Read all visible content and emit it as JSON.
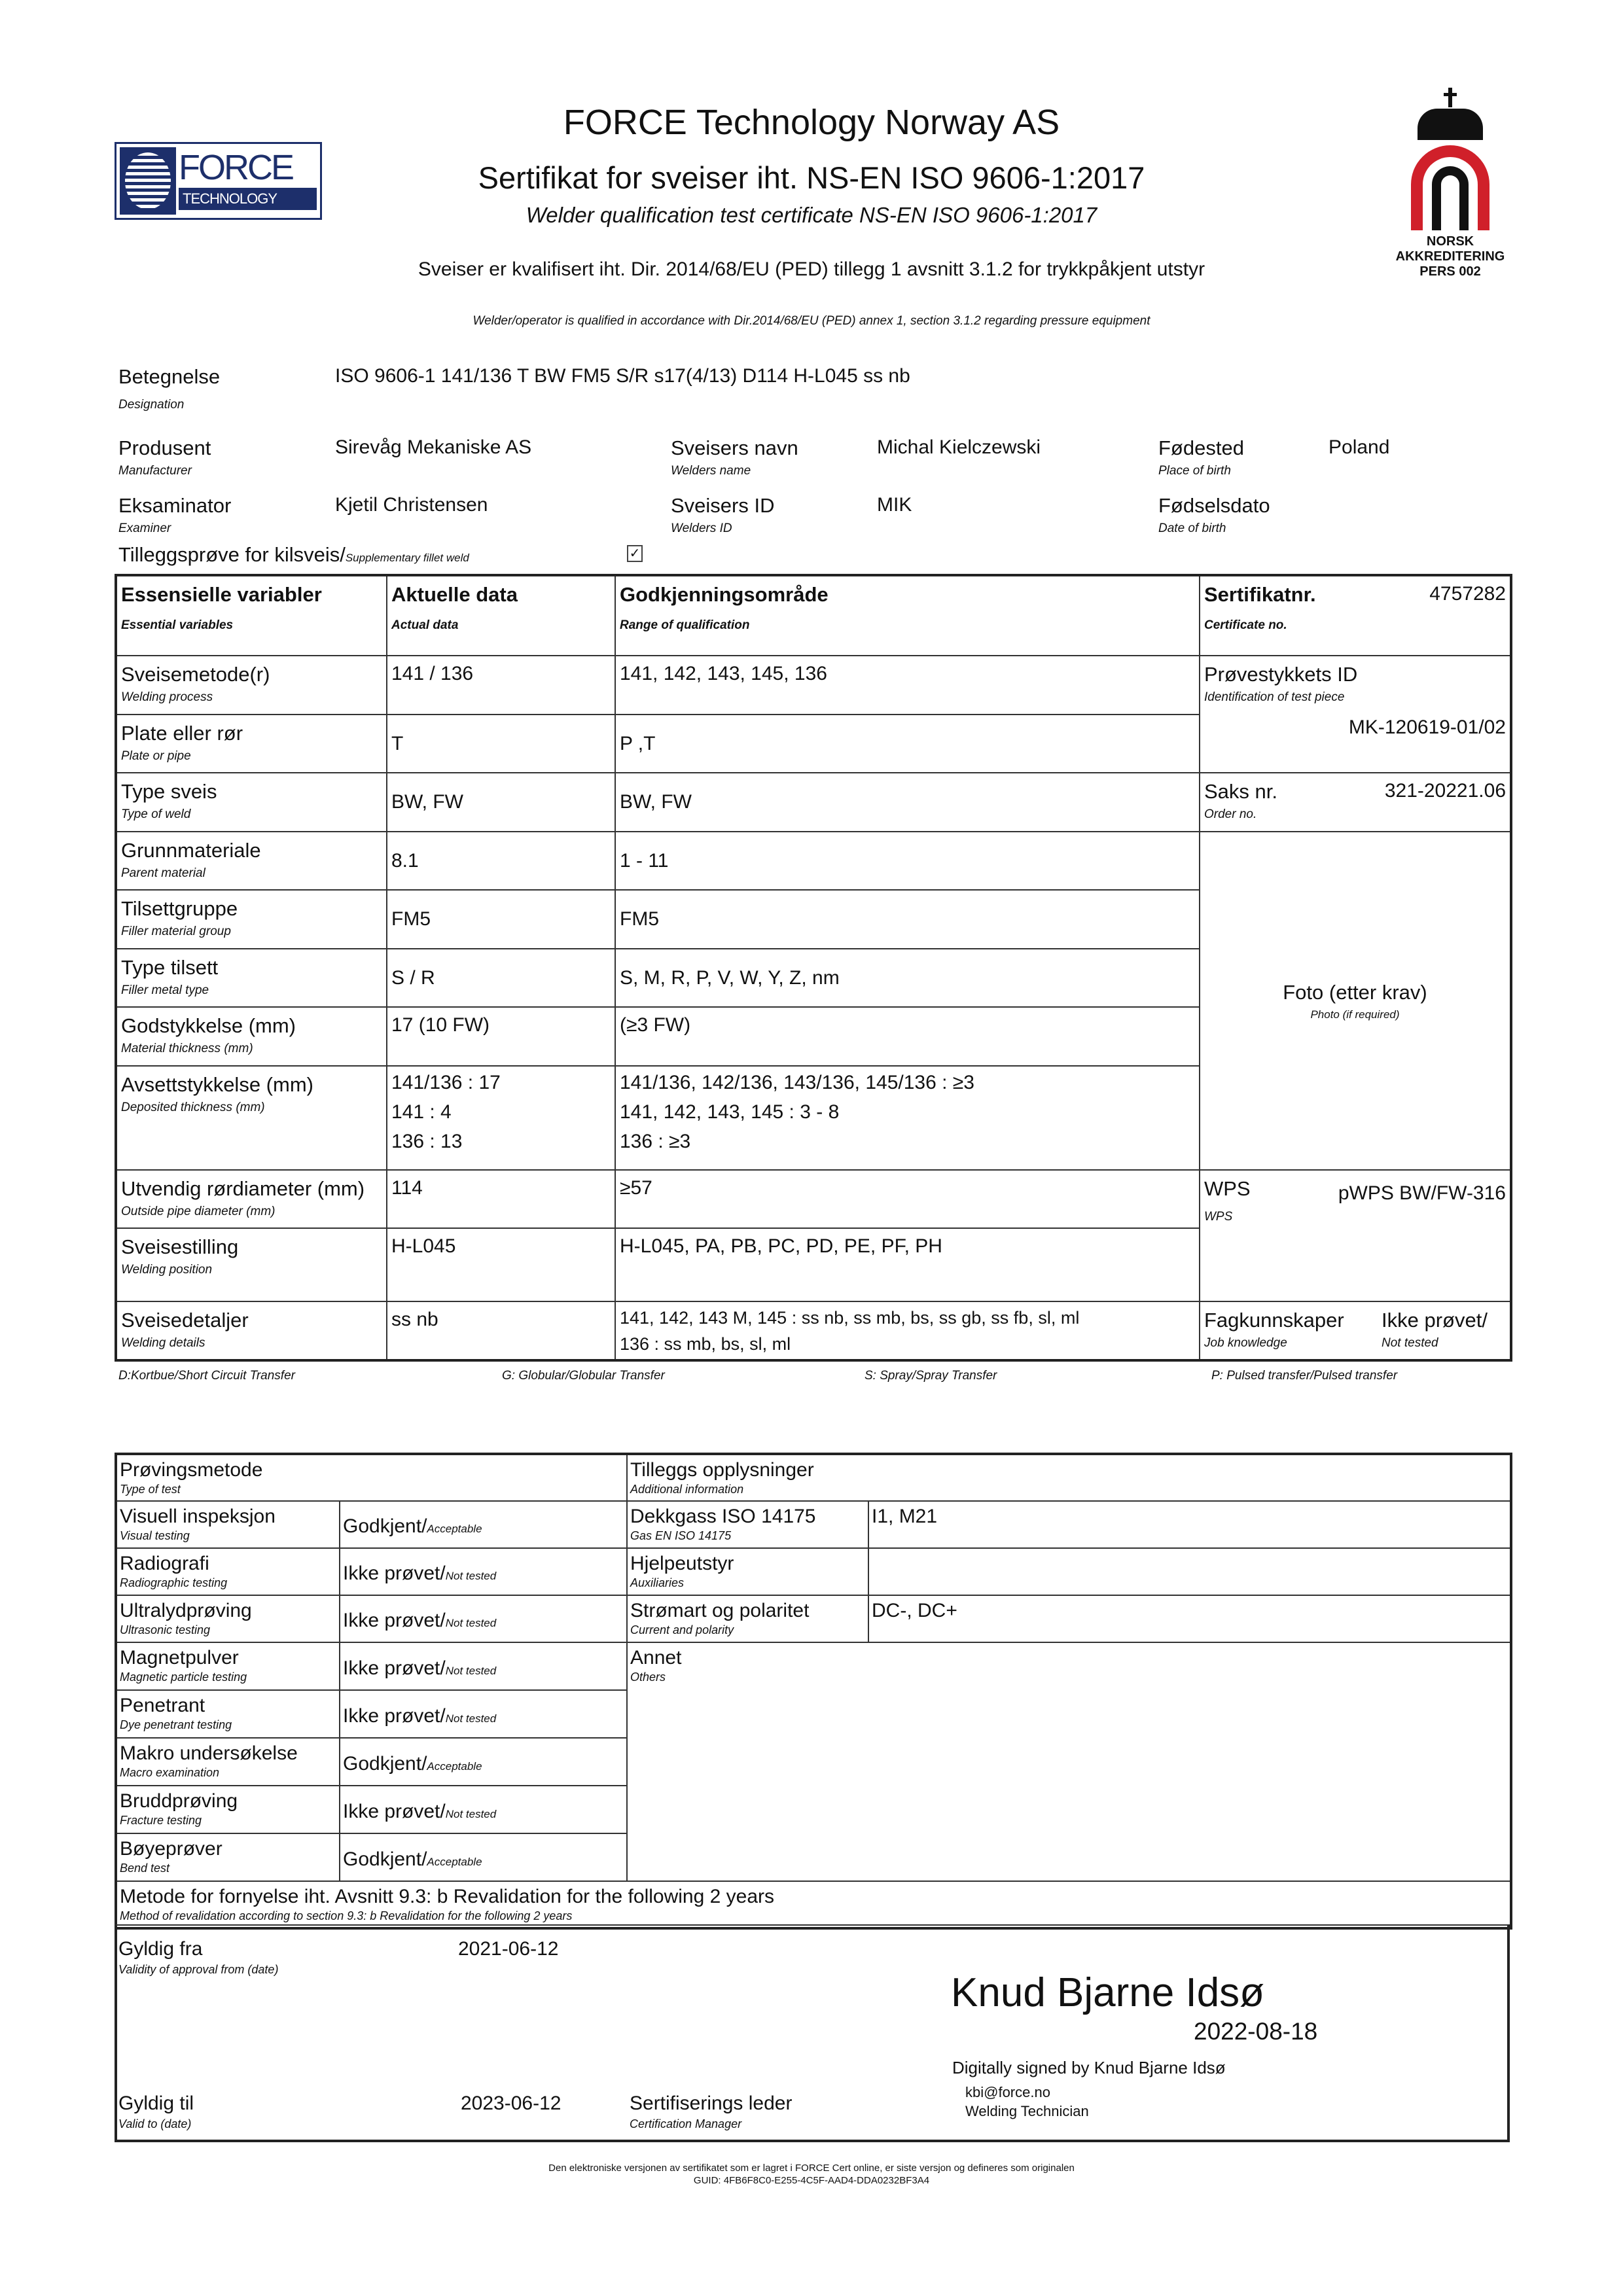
{
  "header": {
    "company": "FORCE Technology Norway AS",
    "title": "Sertifikat for sveiser iht. NS-EN ISO 9606-1:2017",
    "title_en": "Welder qualification test certificate NS-EN ISO 9606-1:2017",
    "ped_no": "Sveiser er kvalifisert iht. Dir. 2014/68/EU (PED) tillegg 1 avsnitt 3.1.2 for trykkpåkjent utstyr",
    "ped_en": "Welder/operator is qualified in accordance with Dir.2014/68/EU (PED) annex 1, section 3.1.2 regarding pressure equipment",
    "logo_force": {
      "line1": "FORCE",
      "line2": "TECHNOLOGY",
      "color": "#1d2f6b"
    },
    "logo_accreditation": {
      "line1": "NORSK",
      "line2": "AKKREDITERING",
      "line3": "PERS 002",
      "color": "#d0202a"
    }
  },
  "info": {
    "designation": {
      "label": "Betegnelse",
      "sub": "Designation",
      "value": "ISO 9606-1 141/136 T BW FM5 S/R s17(4/13) D114 H-L045 ss nb"
    },
    "manufacturer": {
      "label": "Produsent",
      "sub": "Manufacturer",
      "value": "Sirevåg Mekaniske AS"
    },
    "welder_name": {
      "label": "Sveisers navn",
      "sub": "Welders name",
      "value": "Michal Kielczewski"
    },
    "place_of_birth": {
      "label": "Fødested",
      "sub": "Place of birth",
      "value": "Poland"
    },
    "examiner": {
      "label": "Eksaminator",
      "sub": "Examiner",
      "value": "Kjetil Christensen"
    },
    "welder_id": {
      "label": "Sveisers ID",
      "sub": "Welders ID",
      "value": "MIK"
    },
    "date_of_birth": {
      "label": "Fødselsdato",
      "sub": "Date of birth"
    },
    "supplementary": {
      "label": "Tilleggsprøve for kilsveis/",
      "sub": "Supplementary fillet weld",
      "checked": true
    }
  },
  "variables": {
    "headers": [
      {
        "label": "Essensielle variabler",
        "sub": "Essential variables"
      },
      {
        "label": "Aktuelle data",
        "sub": "Actual data"
      },
      {
        "label": "Godkjenningsområde",
        "sub": "Range of qualification"
      }
    ],
    "rows": [
      {
        "label": "Sveisemetode(r)",
        "sub": "Welding process",
        "actual": "141 / 136",
        "range": "141, 142, 143, 145, 136"
      },
      {
        "label": "Plate eller rør",
        "sub": "Plate or pipe",
        "actual": "T",
        "range": "P ,T"
      },
      {
        "label": "Type sveis",
        "sub": "Type of weld",
        "actual": "BW, FW",
        "range": "BW, FW"
      },
      {
        "label": "Grunnmateriale",
        "sub": "Parent material",
        "actual": "8.1",
        "range": "1 - 11"
      },
      {
        "label": "Tilsettgruppe",
        "sub": "Filler material group",
        "actual": "FM5",
        "range": "FM5"
      },
      {
        "label": "Type tilsett",
        "sub": "Filler metal type",
        "actual": "S / R",
        "range": "S, M, R, P, V, W, Y, Z, nm"
      },
      {
        "label": "Godstykkelse (mm)",
        "sub": "Material thickness (mm)",
        "actual": "17 (10 FW)",
        "range": "(≥3 FW)"
      },
      {
        "label": "Avsettstykkelse (mm)",
        "sub": "Deposited thickness (mm)",
        "actual": [
          "141/136 : 17",
          "141 : 4",
          "136 : 13"
        ],
        "range": [
          "141/136, 142/136, 143/136, 145/136 : ≥3",
          "141, 142, 143, 145 : 3 - 8",
          "136 : ≥3"
        ]
      },
      {
        "label": "Utvendig rørdiameter (mm)",
        "sub": "Outside pipe diameter (mm)",
        "actual": "114",
        "range": "≥57"
      },
      {
        "label": "Sveisestilling",
        "sub": "Welding position",
        "actual": "H-L045",
        "range": "H-L045, PA, PB, PC, PD, PE, PF, PH"
      },
      {
        "label": "Sveisedetaljer",
        "sub": "Welding details",
        "actual": "ss nb",
        "range": [
          "141, 142, 143 M, 145 : ss nb, ss mb, bs, ss gb, ss fb, sl, ml",
          "136 : ss mb, bs, sl, ml"
        ]
      }
    ],
    "certificate_no": {
      "label": "Sertifikatnr.",
      "sub": "Certificate no.",
      "value": "4757282"
    },
    "test_piece": {
      "label": "Prøvestykkets ID",
      "sub": "Identification of test piece",
      "value": "MK-120619-01/02"
    },
    "order_no": {
      "label": "Saks nr.",
      "sub": "Order no.",
      "value": "321-20221.06"
    },
    "photo": {
      "label": "Foto (etter krav)",
      "sub": "Photo (if required)"
    },
    "wps": {
      "label": "WPS",
      "sub": "WPS",
      "value": "pWPS BW/FW-316"
    },
    "job_knowledge": {
      "label": "Fagkunnskaper",
      "sub": "Job knowledge",
      "value": "Ikke prøvet/",
      "value_sub": "Not tested"
    }
  },
  "transfer_legend": [
    "D:Kortbue/Short Circuit Transfer",
    "G: Globular/Globular Transfer",
    "S: Spray/Spray Transfer",
    "P: Pulsed transfer/Pulsed transfer"
  ],
  "tests": {
    "header": {
      "label": "Prøvingsmetode",
      "sub": "Type of test"
    },
    "rows": [
      {
        "label": "Visuell inspeksjon",
        "sub": "Visual testing",
        "result": "Godkjent/",
        "result_sub": "Acceptable"
      },
      {
        "label": "Radiografi",
        "sub": "Radiographic testing",
        "result": "Ikke prøvet/",
        "result_sub": "Not tested"
      },
      {
        "label": "Ultralydprøving",
        "sub": "Ultrasonic testing",
        "result": "Ikke prøvet/",
        "result_sub": "Not tested"
      },
      {
        "label": "Magnetpulver",
        "sub": "Magnetic particle testing",
        "result": "Ikke prøvet/",
        "result_sub": "Not tested"
      },
      {
        "label": "Penetrant",
        "sub": "Dye penetrant testing",
        "result": "Ikke prøvet/",
        "result_sub": "Not tested"
      },
      {
        "label": "Makro undersøkelse",
        "sub": "Macro examination",
        "result": "Godkjent/",
        "result_sub": "Acceptable"
      },
      {
        "label": "Bruddprøving",
        "sub": "Fracture testing",
        "result": "Ikke prøvet/",
        "result_sub": "Not tested"
      },
      {
        "label": "Bøyeprøver",
        "sub": "Bend test",
        "result": "Godkjent/",
        "result_sub": "Acceptable"
      }
    ]
  },
  "additional": {
    "header": {
      "label": "Tilleggs opplysninger",
      "sub": "Additional information"
    },
    "rows": [
      {
        "label": "Dekkgass ISO 14175",
        "sub": "Gas EN ISO 14175",
        "value": "I1, M21"
      },
      {
        "label": "Hjelpeutstyr",
        "sub": "Auxiliaries",
        "value": ""
      },
      {
        "label": "Strømart og polaritet",
        "sub": "Current and polarity",
        "value": "DC-, DC+"
      },
      {
        "label": "Annet",
        "sub": "Others",
        "value": ""
      }
    ]
  },
  "revalidation": {
    "label": "Metode for fornyelse iht. Avsnitt 9.3: b Revalidation for the following 2 years",
    "sub": "Method of revalidation according to section 9.3: b Revalidation for the following 2 years"
  },
  "validity": {
    "from": {
      "label": "Gyldig fra",
      "sub": "Validity of approval from (date)",
      "value": "2021-06-12"
    },
    "to": {
      "label": "Gyldig til",
      "sub": "Valid to (date)",
      "value": "2023-06-12"
    },
    "manager": {
      "label": "Sertifiserings leder",
      "sub": "Certification Manager"
    }
  },
  "signature": {
    "name": "Knud Bjarne Idsø",
    "date": "2022-08-18",
    "digital": "Digitally signed by Knud Bjarne Idsø",
    "email": "kbi@force.no",
    "role": "Welding Technician"
  },
  "footer": {
    "note": "Den elektroniske versjonen av sertifikatet som er lagret i FORCE Cert online, er siste versjon og defineres som originalen",
    "guid": "GUID: 4FB6F8C0-E255-4C5F-AAD4-DDA0232BF3A4"
  }
}
